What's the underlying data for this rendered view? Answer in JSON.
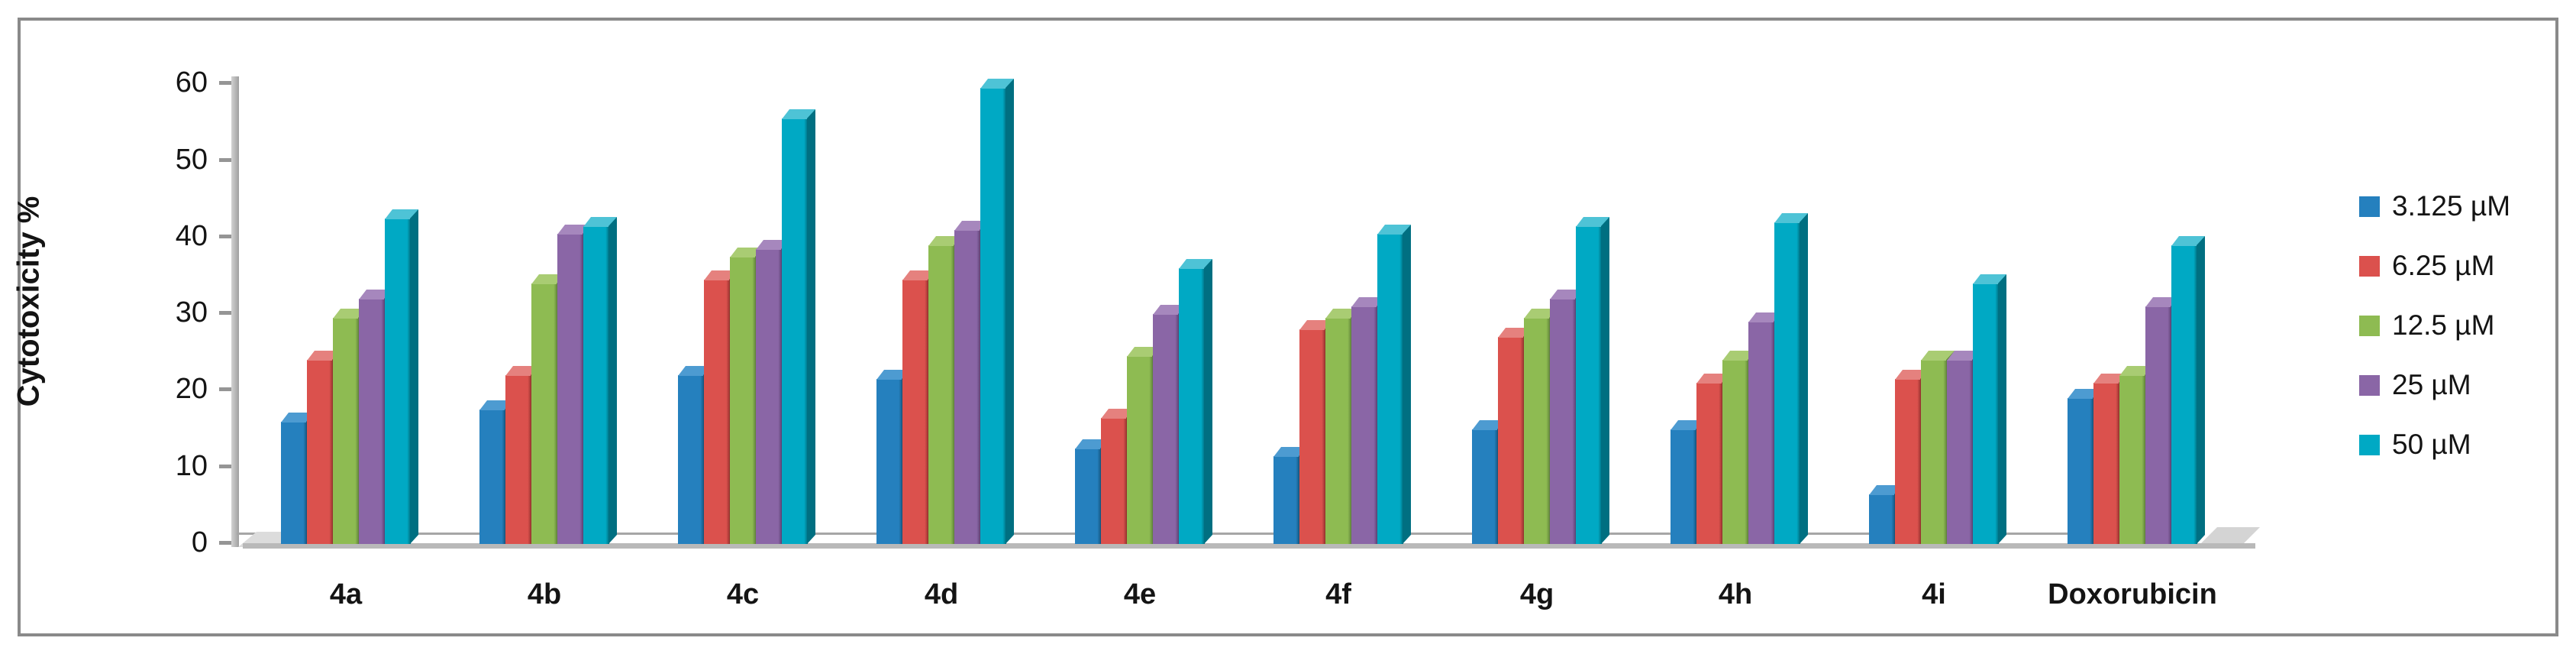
{
  "figure": {
    "ylabel": "Cytotoxicity %"
  },
  "chart_data": {
    "type": "bar",
    "style": "3d-clustered",
    "title": "",
    "xlabel": "",
    "ylabel": "Cytotoxicity %",
    "ylim": [
      0,
      60
    ],
    "yticks": [
      0,
      10,
      20,
      30,
      40,
      50,
      60
    ],
    "grid": false,
    "legend_position": "right",
    "categories": [
      "4a",
      "4b",
      "4c",
      "4d",
      "4e",
      "4f",
      "4g",
      "4h",
      "4i",
      "Doxorubicin"
    ],
    "series": [
      {
        "name": "3.125 µM",
        "color": "#2580BE",
        "top_color": "#4D9BD1",
        "side_color": "#16567F",
        "values": [
          16,
          17.5,
          22,
          21.5,
          12.5,
          11.5,
          15,
          15,
          6.5,
          19
        ]
      },
      {
        "name": "6.25 µM",
        "color": "#DB514D",
        "top_color": "#E5817E",
        "side_color": "#96332F",
        "values": [
          24,
          22,
          34.5,
          34.5,
          16.5,
          28,
          27,
          21,
          21.5,
          21
        ]
      },
      {
        "name": "12.5 µM",
        "color": "#8EBB52",
        "top_color": "#A9CC73",
        "side_color": "#61853A",
        "values": [
          29.5,
          34,
          37.5,
          39,
          24.5,
          29.5,
          29.5,
          24,
          24,
          22
        ]
      },
      {
        "name": "25 µM",
        "color": "#8A66A6",
        "top_color": "#A687BD",
        "side_color": "#5E4375",
        "values": [
          32,
          40.5,
          38.5,
          41,
          30,
          31,
          32,
          29,
          24,
          31
        ]
      },
      {
        "name": "50 µM",
        "color": "#00A9C4",
        "top_color": "#4EC3D6",
        "side_color": "#006F81",
        "values": [
          42.5,
          41.5,
          55.5,
          59.5,
          36,
          40.5,
          41.5,
          42,
          34,
          39
        ]
      }
    ]
  }
}
